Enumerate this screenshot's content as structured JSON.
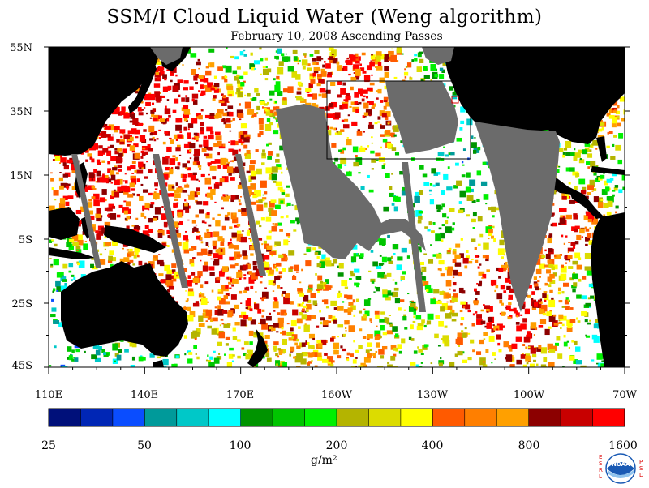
{
  "title": "SSM/I Cloud Liquid Water (Weng algorithm)",
  "subtitle": "February 10, 2008  Ascending Passes",
  "map": {
    "lat_labels": [
      "55N",
      "35N",
      "15N",
      "5S",
      "25S",
      "45S"
    ],
    "lon_labels": [
      "110E",
      "140E",
      "170E",
      "160W",
      "130W",
      "100W",
      "70W"
    ],
    "land_color": "#000000",
    "missing_color": "#6b6b6b",
    "ocean_clear_color": "#ffffff"
  },
  "colorbar": {
    "colors": [
      "#00107a",
      "#0026b5",
      "#0a4dff",
      "#009a9a",
      "#00c8c8",
      "#00ffff",
      "#009400",
      "#00c400",
      "#00f000",
      "#b4b400",
      "#dcdc00",
      "#ffff00",
      "#ff5a00",
      "#ff7f00",
      "#ffa000",
      "#8c0000",
      "#c80000",
      "#ff0000"
    ],
    "tick_labels": [
      "25",
      "50",
      "100",
      "200",
      "400",
      "800",
      "1600"
    ],
    "units": "g/m²"
  },
  "logo": {
    "name": "noaa-logo",
    "text": "NOAA",
    "left_letters": "ESRL",
    "right_letters": "PSD",
    "color": "#1a5ab4"
  }
}
